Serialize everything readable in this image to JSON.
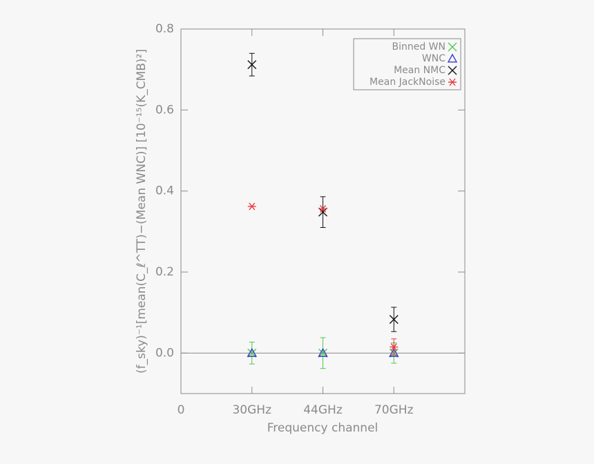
{
  "chart_data": {
    "type": "scatter",
    "xlabel": "Frequency channel",
    "ylabel": "(f_sky)⁻¹[mean(C_ℓ^TT)−(Mean WNC)] [10⁻¹⁵(K_CMB)²]",
    "x": [
      1,
      2,
      3
    ],
    "xlim": [
      0,
      4
    ],
    "xticks": [
      0,
      {
        "value": 1,
        "label": "30GHz"
      },
      {
        "value": 2,
        "label": "44GHz"
      },
      {
        "value": 3,
        "label": "70GHz"
      }
    ],
    "ylim": [
      -0.1,
      0.8
    ],
    "yticks": [
      {
        "value": 0,
        "label": "0.0"
      },
      0.2,
      0.4,
      0.6,
      0.8
    ],
    "zero_line": true,
    "legend": "upper right",
    "series": [
      {
        "name": "Binned WN",
        "color": "#4ec94e",
        "marker": "x",
        "values": [
          0,
          0,
          0
        ],
        "errors": [
          0.027,
          0.038,
          0.025
        ]
      },
      {
        "name": "WNC",
        "color": "#3a3ad0",
        "marker": "triangle",
        "values": [
          0,
          0,
          0
        ]
      },
      {
        "name": "Mean NMC",
        "color": "#111111",
        "marker": "x",
        "values": [
          0.712,
          0.348,
          0.083
        ],
        "errors": [
          0.028,
          0.038,
          0.03
        ]
      },
      {
        "name": "Mean JackNoise",
        "color": "#e83c3c",
        "marker": "asterisk",
        "values": [
          0.362,
          0.356,
          0.015
        ],
        "errors": [
          null,
          null,
          0.02
        ]
      }
    ]
  }
}
